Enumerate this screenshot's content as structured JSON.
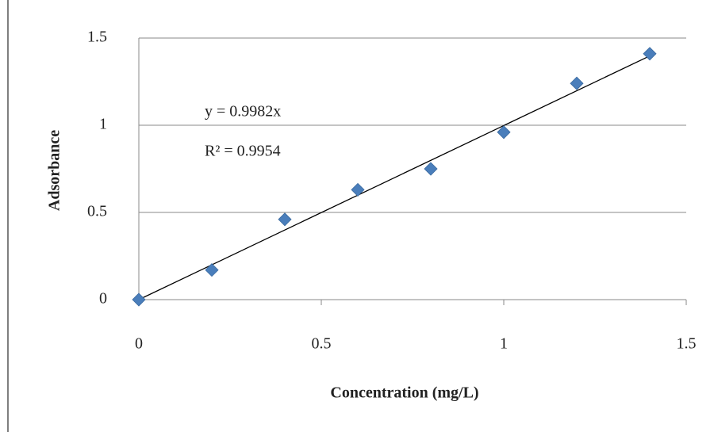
{
  "chart_data": {
    "type": "scatter",
    "x_label": "Concentration (mg/L)",
    "y_label": "Adsorbance",
    "x": [
      0,
      0.2,
      0.4,
      0.6,
      0.8,
      1.0,
      1.2,
      1.4
    ],
    "series": [
      {
        "color": "#4a7ebb",
        "values": [
          0,
          0.17,
          0.46,
          0.63,
          0.75,
          0.96,
          1.24,
          1.41
        ]
      }
    ],
    "xlim": [
      0,
      1.5
    ],
    "xticks": [
      0,
      0.5,
      1,
      1.5
    ],
    "ylim": [
      0,
      1.5
    ],
    "yticks": [
      0,
      0.5,
      1,
      1.5
    ],
    "grid": true,
    "trendline": {
      "slope": 0.9982,
      "equation": "y = 0.9982x",
      "r_squared": "R² = 0.9954"
    }
  }
}
